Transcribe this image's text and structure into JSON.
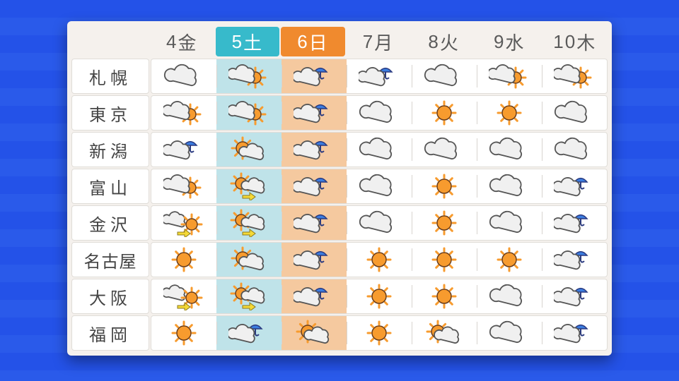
{
  "colors": {
    "background": "#2452e8",
    "stripe_alt": "#2a5aea",
    "card_bg": "#f5f1ed",
    "cell_bg": "#ffffff",
    "divider": "#d8d4cf",
    "text": "#5a5a5a",
    "sat_header_bg": "#37bacb",
    "sun_header_bg": "#f08a2e",
    "sat_cell_bg": "#bfe3e9",
    "sun_cell_bg": "#f5c99f",
    "sun_fill": "#f79b2e",
    "sun_stroke": "#6a3d1a",
    "cloud_fill": "#f0f0f0",
    "cloud_stroke": "#555555",
    "umbrella_fill": "#3b7de0",
    "umbrella_stroke": "#2a3a80",
    "arrow_fill": "#f5d936"
  },
  "days": [
    {
      "num": "4",
      "dow": "金",
      "highlight": null
    },
    {
      "num": "5",
      "dow": "土",
      "highlight": "sat"
    },
    {
      "num": "6",
      "dow": "日",
      "highlight": "sun"
    },
    {
      "num": "7",
      "dow": "月",
      "highlight": null
    },
    {
      "num": "8",
      "dow": "火",
      "highlight": null
    },
    {
      "num": "9",
      "dow": "水",
      "highlight": null
    },
    {
      "num": "10",
      "dow": "木",
      "highlight": null
    }
  ],
  "cities": [
    {
      "name": "札幌",
      "forecast": [
        "cloud",
        "cloud-sun",
        "cloud-rain",
        "cloud-rain",
        "cloud",
        "cloud-sun",
        "cloud-sun"
      ]
    },
    {
      "name": "東京",
      "forecast": [
        "cloud-sun",
        "cloud-sun",
        "cloud-rain",
        "cloud",
        "sun",
        "sun",
        "cloud"
      ]
    },
    {
      "name": "新潟",
      "forecast": [
        "cloud-rain",
        "sun-cloud",
        "cloud-rain",
        "cloud",
        "cloud",
        "cloud",
        "cloud"
      ]
    },
    {
      "name": "富山",
      "forecast": [
        "cloud-sun",
        "sun-then-cloud",
        "cloud-rain",
        "cloud",
        "sun",
        "cloud",
        "cloud-rain"
      ]
    },
    {
      "name": "金沢",
      "forecast": [
        "cloud-then-sun",
        "sun-then-cloud",
        "cloud-rain",
        "cloud",
        "sun",
        "cloud",
        "cloud-rain"
      ]
    },
    {
      "name": "名古屋",
      "forecast": [
        "sun",
        "sun-cloud",
        "cloud-rain",
        "sun",
        "sun",
        "sun",
        "cloud-rain"
      ]
    },
    {
      "name": "大阪",
      "forecast": [
        "cloud-then-sun",
        "sun-then-cloud",
        "cloud-rain",
        "sun",
        "sun",
        "cloud",
        "cloud-rain"
      ]
    },
    {
      "name": "福岡",
      "forecast": [
        "sun",
        "cloud-rain",
        "sun-cloud",
        "sun",
        "sun-cloud",
        "cloud",
        "cloud-rain"
      ]
    }
  ]
}
